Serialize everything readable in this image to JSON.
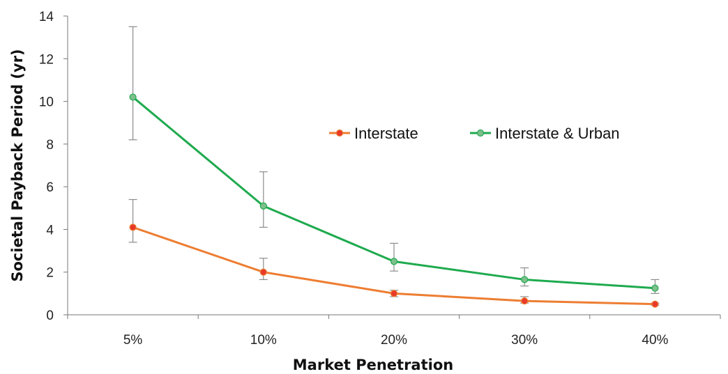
{
  "chart_data": {
    "type": "line",
    "title": "",
    "xlabel": "Market Penetration",
    "ylabel": "Societal Payback Period (yr)",
    "categories": [
      "5%",
      "10%",
      "20%",
      "30%",
      "40%"
    ],
    "ylim": [
      0,
      14
    ],
    "yticks": [
      "0",
      "2",
      "4",
      "6",
      "8",
      "10",
      "12",
      "14"
    ],
    "grid": false,
    "legend_position": "center-right",
    "series": [
      {
        "name": "Interstate",
        "color": "#ED7D31",
        "marker_color": "#E8392A",
        "values": [
          4.1,
          2.0,
          1.0,
          0.65,
          0.5
        ],
        "error_low": [
          3.4,
          1.65,
          0.85,
          0.55,
          0.45
        ],
        "error_high": [
          5.4,
          2.65,
          1.15,
          0.85,
          0.55
        ]
      },
      {
        "name": "Interstate & Urban",
        "color": "#1EAA4E",
        "marker_color": "#7DC08C",
        "values": [
          10.2,
          5.1,
          2.5,
          1.65,
          1.25
        ],
        "error_low": [
          8.2,
          4.1,
          2.05,
          1.35,
          1.0
        ],
        "error_high": [
          13.5,
          6.7,
          3.35,
          2.2,
          1.65
        ]
      }
    ],
    "error_bar_color": "#8C8C8C"
  }
}
